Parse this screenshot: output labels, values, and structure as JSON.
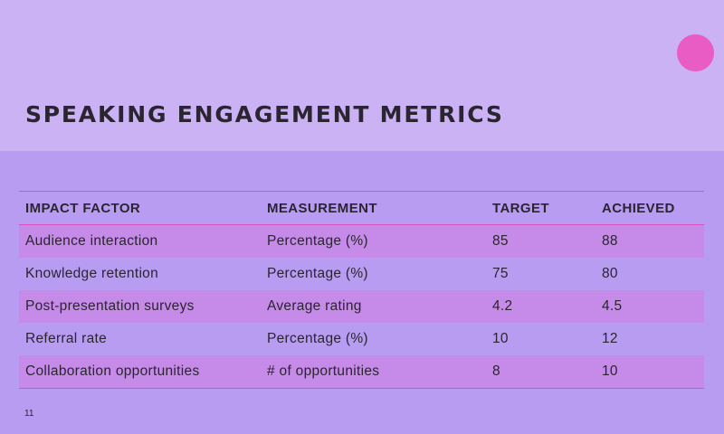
{
  "slide": {
    "title": "SPEAKING ENGAGEMENT METRICS",
    "page_number": "11",
    "accent_color": "#e95cc4"
  },
  "table": {
    "headers": [
      "IMPACT FACTOR",
      "MEASUREMENT",
      "TARGET",
      "ACHIEVED"
    ],
    "rows": [
      [
        "Audience interaction",
        "Percentage (%)",
        "85",
        "88"
      ],
      [
        "Knowledge retention",
        "Percentage (%)",
        "75",
        "80"
      ],
      [
        "Post-presentation surveys",
        "Average rating",
        "4.2",
        "4.5"
      ],
      [
        "Referral rate",
        "Percentage (%)",
        "10",
        "12"
      ],
      [
        "Collaboration opportunities",
        "# of opportunities",
        "8",
        "10"
      ]
    ]
  }
}
